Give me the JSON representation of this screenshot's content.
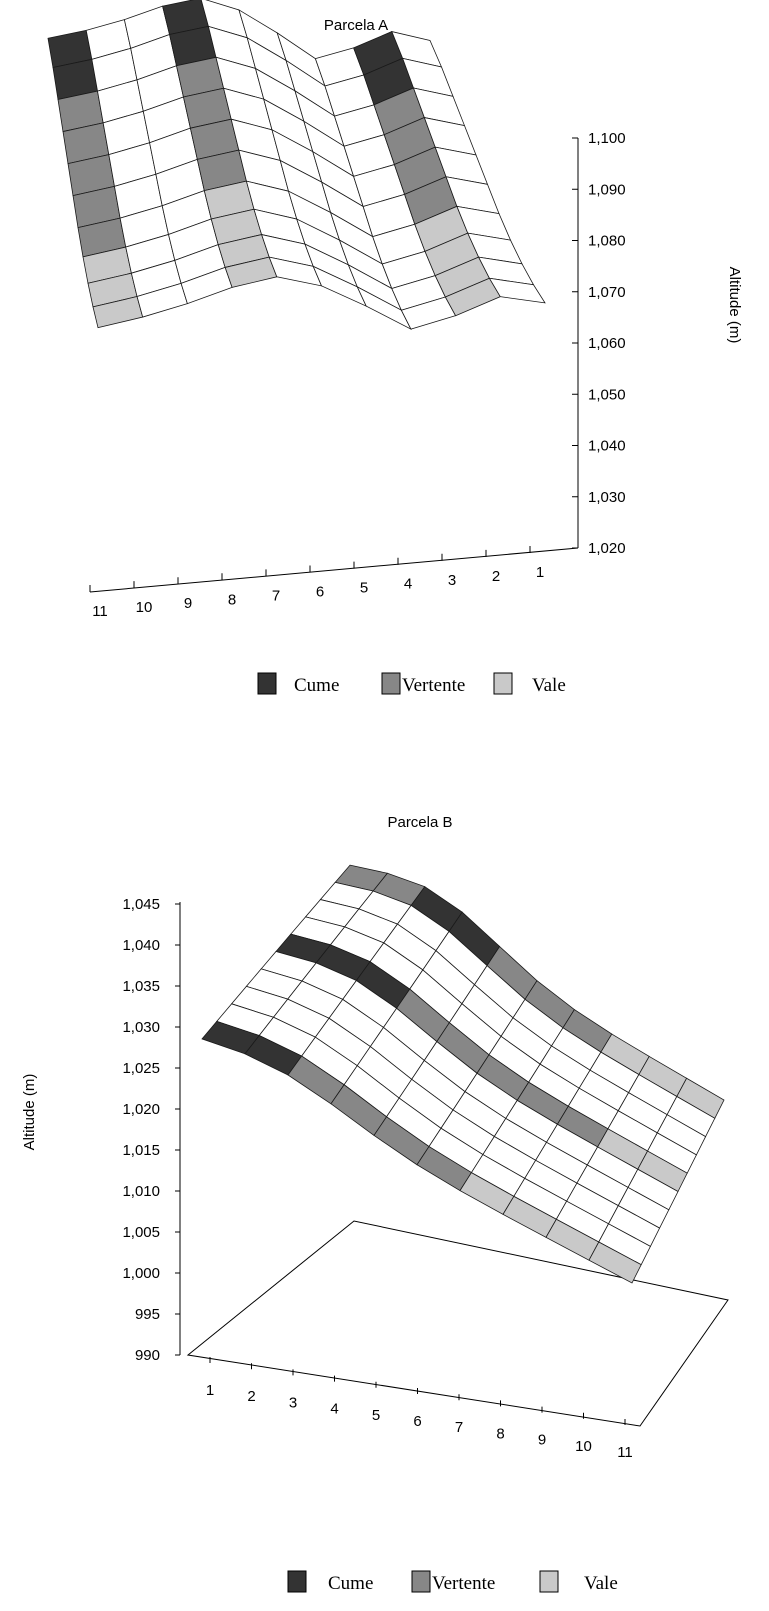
{
  "chart_data": [
    {
      "type": "surface",
      "title": "Parcela A",
      "zlabel": "Altitude (m)",
      "z_ticks": [
        "1,020",
        "1,030",
        "1,040",
        "1,050",
        "1,060",
        "1,070",
        "1,080",
        "1,090",
        "1,100"
      ],
      "zlim": [
        1020,
        1100
      ],
      "x_ticks": [
        "11",
        "10",
        "9",
        "8",
        "7",
        "6",
        "5",
        "4",
        "3",
        "2",
        "1"
      ],
      "rows": 11,
      "cols": 11,
      "profile": [
        1082,
        1085,
        1089,
        1094,
        1097,
        1093,
        1085,
        1076,
        1080,
        1086,
        1083
      ],
      "row_drop": [
        0,
        4,
        9,
        14,
        19,
        24,
        29,
        33,
        36,
        38,
        39
      ],
      "zones": [
        {
          "cols": [
            0
          ],
          "zone": "Cume"
        },
        {
          "cols": [
            3
          ],
          "zone": "Vertente"
        },
        {
          "cols": [
            8
          ],
          "zone": "Vertente"
        }
      ],
      "legend": [
        "Cume",
        "Vertente",
        "Vale"
      ],
      "colors": {
        "Cume": "#333333",
        "Vertente": "#878787",
        "Vale": "#c9c9c9",
        "surface": "#ffffff",
        "grid": "#1a1a1a"
      }
    },
    {
      "type": "surface",
      "title": "Parcela B",
      "ylabel": "Altitude (m)",
      "z_ticks": [
        "990",
        "995",
        "1,000",
        "1,005",
        "1,010",
        "1,015",
        "1,020",
        "1,025",
        "1,030",
        "1,035",
        "1,040",
        "1,045"
      ],
      "zlim": [
        990,
        1045
      ],
      "x_ticks": [
        "1",
        "2",
        "3",
        "4",
        "5",
        "6",
        "7",
        "8",
        "9",
        "10",
        "11"
      ],
      "rows": 11,
      "cols": 11,
      "legend": [
        "Cume",
        "Vertente",
        "Vale"
      ],
      "colors": {
        "Cume": "#333333",
        "Vertente": "#878787",
        "Vale": "#c9c9c9",
        "surface": "#ffffff",
        "grid": "#1a1a1a"
      }
    }
  ]
}
